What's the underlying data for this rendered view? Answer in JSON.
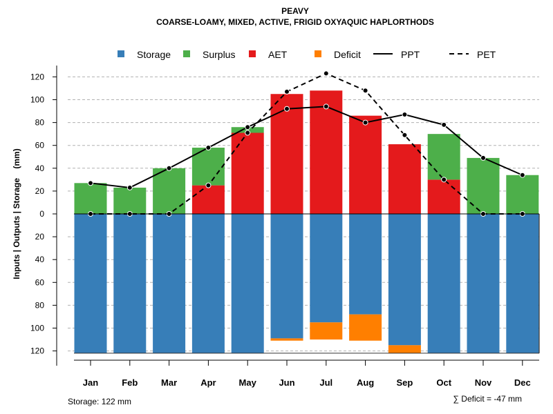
{
  "chart_data": {
    "type": "bar",
    "title": "PEAVY",
    "subtitle": "COARSE-LOAMY, MIXED, ACTIVE, FRIGID OXYAQUIC HAPLORTHODS",
    "ylabel": "Inputs | Outputs | Storage    (mm)",
    "ylim": [
      -122,
      125
    ],
    "yticks": [
      120,
      100,
      80,
      60,
      40,
      20,
      0,
      20,
      40,
      60,
      80,
      100,
      120
    ],
    "ytick_values": [
      120,
      100,
      80,
      60,
      40,
      20,
      0,
      -20,
      -40,
      -60,
      -80,
      -100,
      -120
    ],
    "categories": [
      "Jan",
      "Feb",
      "Mar",
      "Apr",
      "May",
      "Jun",
      "Jul",
      "Aug",
      "Sep",
      "Oct",
      "Nov",
      "Dec"
    ],
    "legend": [
      "Storage",
      "Surplus",
      "AET",
      "Deficit",
      "PPT",
      "PET"
    ],
    "colors": {
      "storage": "#377EB8",
      "surplus": "#4DAF4A",
      "aet": "#E41A1C",
      "deficit": "#FF7F00"
    },
    "series": [
      {
        "name": "AET",
        "values": [
          0,
          0,
          0,
          25,
          71,
          105,
          108,
          86,
          61,
          30,
          0,
          0
        ]
      },
      {
        "name": "Surplus",
        "values": [
          27,
          23,
          40,
          33,
          5,
          0,
          0,
          0,
          0,
          40,
          49,
          34
        ]
      },
      {
        "name": "Storage",
        "values": [
          122,
          122,
          122,
          122,
          122,
          109,
          95,
          88,
          115,
          122,
          122,
          122
        ]
      },
      {
        "name": "Deficit",
        "values": [
          0,
          0,
          0,
          0,
          0,
          2,
          15,
          23,
          7,
          0,
          0,
          0
        ]
      },
      {
        "name": "PPT",
        "values": [
          27,
          23,
          40,
          58,
          76,
          92,
          94,
          80,
          87,
          78,
          49,
          34
        ]
      },
      {
        "name": "PET",
        "values": [
          0,
          0,
          0,
          25,
          71,
          107,
          123,
          108,
          69,
          30,
          0,
          0
        ]
      }
    ],
    "storage_note": "Storage: 122 mm",
    "deficit_note": "∑ Deficit = -47 mm"
  }
}
